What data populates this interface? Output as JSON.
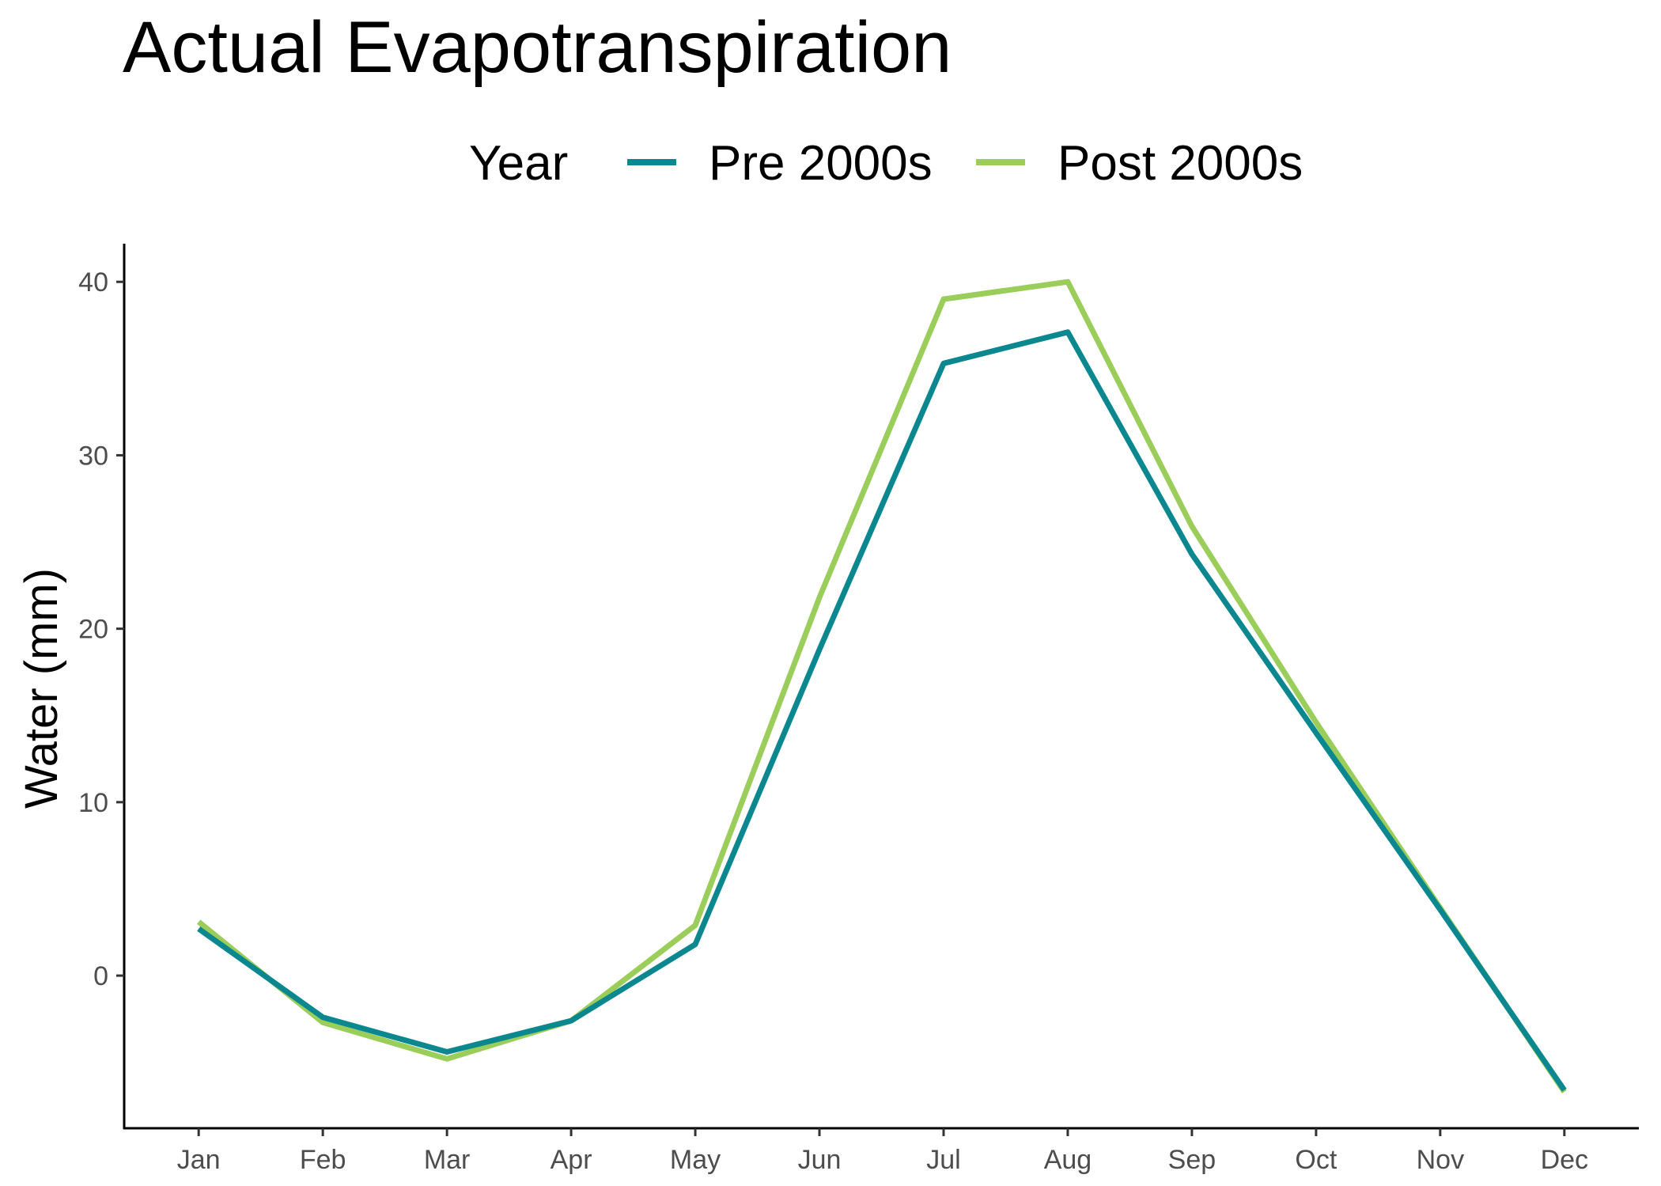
{
  "chart_data": {
    "type": "line",
    "title": "Actual Evapotranspiration",
    "xlabel": "",
    "ylabel": "Water (mm)",
    "categories": [
      "Jan",
      "Feb",
      "Mar",
      "Apr",
      "May",
      "Jun",
      "Jul",
      "Aug",
      "Sep",
      "Oct",
      "Nov",
      "Dec"
    ],
    "yticks": [
      0,
      10,
      20,
      30,
      40
    ],
    "ylim": [
      -8.8,
      42.2
    ],
    "grid": false,
    "legend": {
      "title": "Year",
      "position": "top"
    },
    "series": [
      {
        "name": "Pre 2000s",
        "color": "#0b878f",
        "values": [
          2.7,
          -2.4,
          -4.4,
          -2.6,
          1.8,
          18.8,
          35.3,
          37.1,
          24.3,
          14.0,
          3.8,
          -6.6
        ]
      },
      {
        "name": "Post 2000s",
        "color": "#9acd5a",
        "values": [
          3.1,
          -2.7,
          -4.8,
          -2.6,
          2.9,
          21.8,
          39.0,
          40.0,
          25.9,
          14.6,
          3.9,
          -6.7
        ]
      }
    ]
  }
}
